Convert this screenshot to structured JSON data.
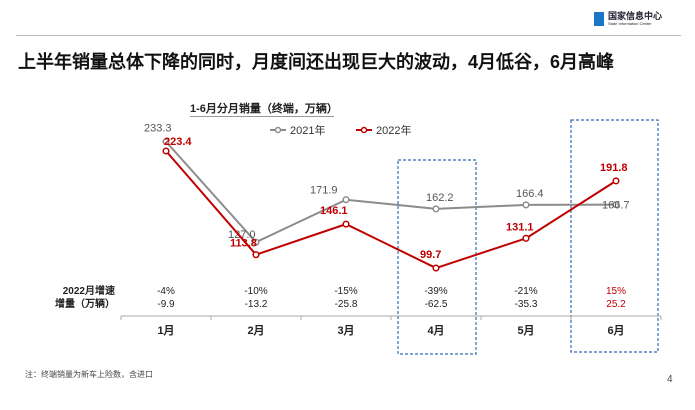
{
  "header": {
    "logo_cn": "国家信息中心",
    "logo_en": "State Information Center",
    "headline": "上半年销量总体下降的同时，月度间还出现巨大的波动，4月低谷，6月高峰"
  },
  "footer": {
    "note": "注：终端销量为新车上险数，含进口",
    "page_number": "4"
  },
  "chart_data": {
    "type": "line",
    "title": "1-6月分月销量（终端，万辆）",
    "categories": [
      "1月",
      "2月",
      "3月",
      "4月",
      "5月",
      "6月"
    ],
    "series": [
      {
        "name": "2021年",
        "values": [
          233.3,
          127.0,
          171.9,
          162.2,
          166.4,
          166.7
        ],
        "color": "#8c8c8c",
        "labels": [
          "233.3",
          "127.0",
          "171.9",
          "162.2",
          "166.4",
          "166.7"
        ]
      },
      {
        "name": "2022年",
        "values": [
          223.4,
          113.8,
          146.1,
          99.7,
          131.1,
          191.8
        ],
        "color": "#c00000",
        "labels": [
          "223.4",
          "113.8",
          "146.1",
          "99.7",
          "131.1",
          "191.8"
        ]
      }
    ],
    "legend": "top",
    "rows": [
      {
        "label": "2022月增速",
        "values": [
          "-4%",
          "-10%",
          "-15%",
          "-39%",
          "-21%",
          "15%"
        ]
      },
      {
        "label": "增量（万辆）",
        "values": [
          "-9.9",
          "-13.2",
          "-25.8",
          "-62.5",
          "-35.3",
          "25.2"
        ]
      }
    ],
    "highlighted": [
      "4月",
      "6月"
    ],
    "highlight_color": "#2e6db4",
    "grid": false
  }
}
